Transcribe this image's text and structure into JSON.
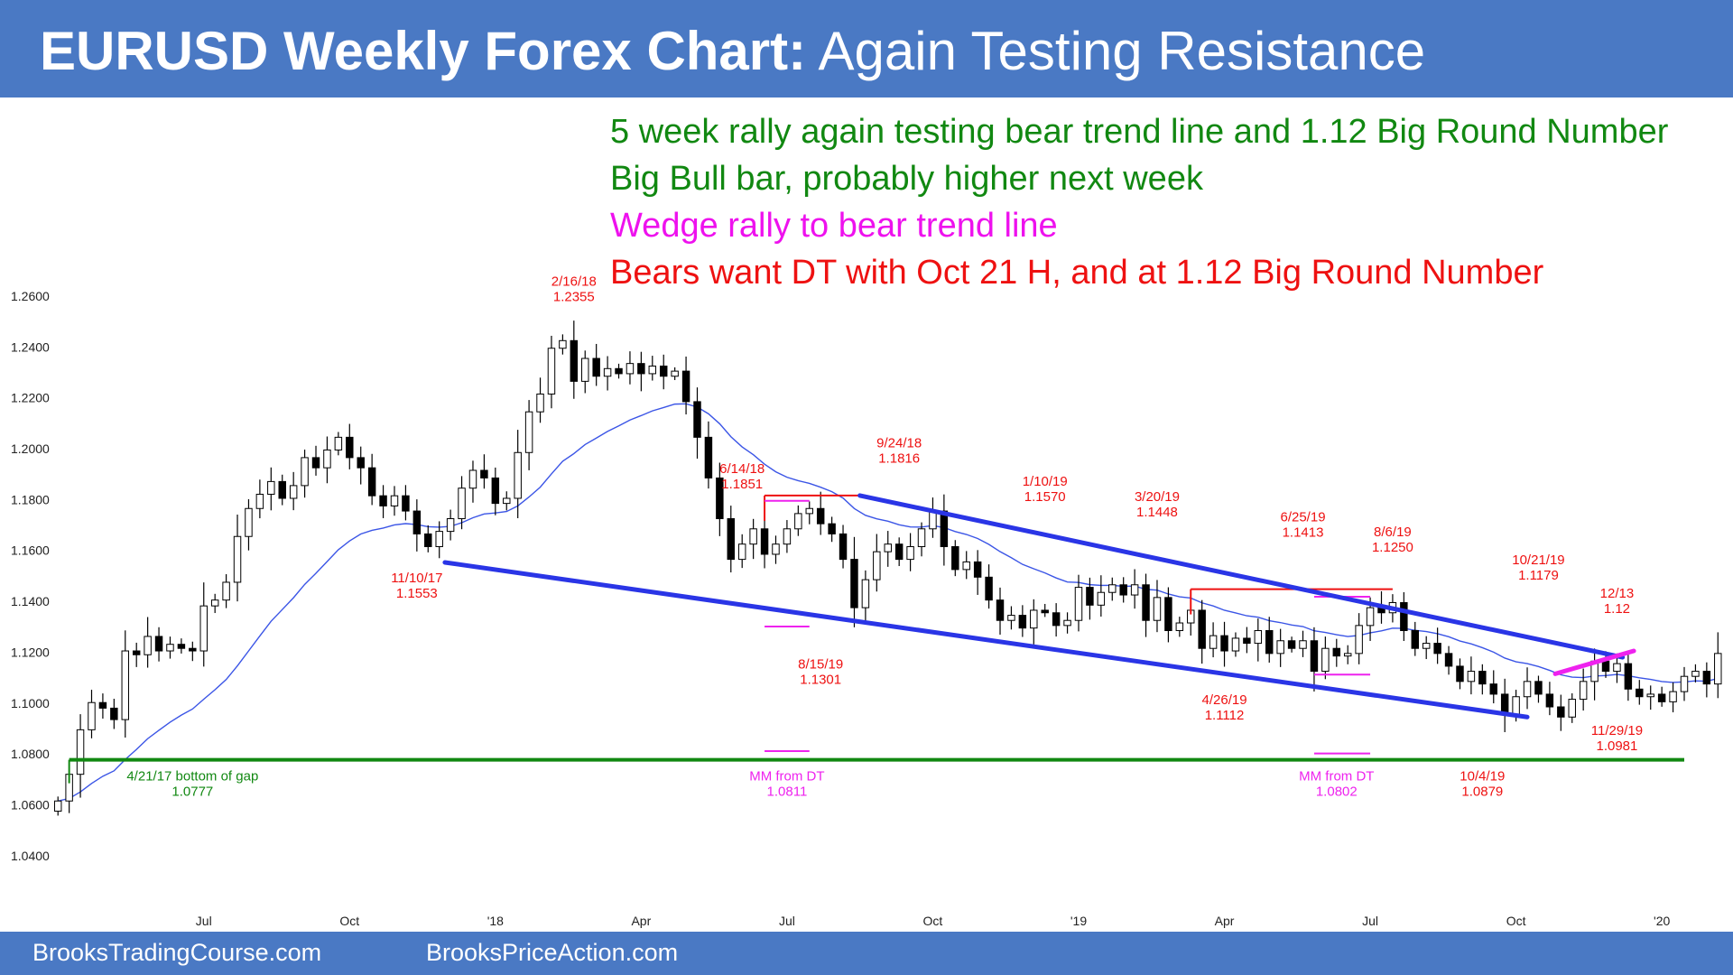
{
  "header": {
    "title_bold": "EURUSD Weekly Forex Chart:",
    "title_rest": " Again Testing Resistance"
  },
  "notes": [
    {
      "text": "5 week rally again testing bear trend line and 1.12 Big Round Number",
      "color": "#118811"
    },
    {
      "text": "Big Bull bar, probably higher next week",
      "color": "#118811"
    },
    {
      "text": "Wedge rally to bear trend line",
      "color": "#ee11ee"
    },
    {
      "text": "Bears want DT with Oct 21 H, and at 1.12 Big Round Number",
      "color": "#ee1111"
    }
  ],
  "footer": {
    "left": "BrooksTradingCourse.com",
    "right": "BrooksPriceAction.com"
  },
  "chart_data": {
    "type": "candlestick",
    "symbol": "EURUSD",
    "timeframe": "weekly",
    "ylim": [
      1.03,
      1.26
    ],
    "yticks": [
      "1.2600",
      "1.2400",
      "1.2200",
      "1.2000",
      "1.1800",
      "1.1600",
      "1.1400",
      "1.1200",
      "1.1000",
      "1.0800",
      "1.0600",
      "1.0400"
    ],
    "xticks": [
      {
        "label": "Jul",
        "week": 13
      },
      {
        "label": "Oct",
        "week": 26
      },
      {
        "label": "'18",
        "week": 39
      },
      {
        "label": "Apr",
        "week": 52
      },
      {
        "label": "Jul",
        "week": 65
      },
      {
        "label": "Oct",
        "week": 78
      },
      {
        "label": "'19",
        "week": 91
      },
      {
        "label": "Apr",
        "week": 104
      },
      {
        "label": "Jul",
        "week": 117
      },
      {
        "label": "Oct",
        "week": 130
      },
      {
        "label": "'20",
        "week": 143
      }
    ],
    "xrange": [
      -0.5,
      145
    ],
    "closes": [
      1.0615,
      1.072,
      1.0895,
      1.1002,
      1.098,
      1.0935,
      1.1205,
      1.119,
      1.1262,
      1.1205,
      1.1231,
      1.1215,
      1.1205,
      1.1382,
      1.1405,
      1.1475,
      1.1655,
      1.1765,
      1.1821,
      1.1871,
      1.1805,
      1.1855,
      1.1965,
      1.1925,
      1.1995,
      1.2045,
      1.1965,
      1.1925,
      1.1815,
      1.1775,
      1.1815,
      1.1755,
      1.1665,
      1.1615,
      1.1675,
      1.1725,
      1.1845,
      1.1915,
      1.1885,
      1.1785,
      1.1805,
      1.1985,
      1.2145,
      1.2215,
      1.2395,
      1.2425,
      1.2265,
      1.2355,
      1.2285,
      1.2315,
      1.2295,
      1.2335,
      1.2295,
      1.2325,
      1.2285,
      1.2305,
      1.2185,
      1.2045,
      1.1885,
      1.1725,
      1.1565,
      1.1625,
      1.1685,
      1.1585,
      1.1625,
      1.1685,
      1.1745,
      1.1765,
      1.1705,
      1.1665,
      1.1565,
      1.1375,
      1.1485,
      1.1595,
      1.1625,
      1.1565,
      1.1615,
      1.1685,
      1.1755,
      1.1615,
      1.1525,
      1.1555,
      1.1495,
      1.1405,
      1.1325,
      1.1345,
      1.1295,
      1.1365,
      1.1355,
      1.1305,
      1.1325,
      1.1455,
      1.1385,
      1.1435,
      1.1465,
      1.1425,
      1.1465,
      1.1325,
      1.1415,
      1.1285,
      1.1315,
      1.1365,
      1.1215,
      1.1265,
      1.1205,
      1.1255,
      1.1235,
      1.1285,
      1.1195,
      1.1245,
      1.1215,
      1.1245,
      1.1125,
      1.1215,
      1.1185,
      1.1195,
      1.1305,
      1.1375,
      1.1355,
      1.1395,
      1.1285,
      1.1215,
      1.1235,
      1.1195,
      1.1145,
      1.1085,
      1.1125,
      1.1075,
      1.1035,
      1.0955,
      1.1025,
      1.1085,
      1.1035,
      1.0985,
      1.0945,
      1.1015,
      1.1085,
      1.1165,
      1.1125,
      1.1155,
      1.1055,
      1.1025,
      1.1035,
      1.1005,
      1.1045,
      1.1105,
      1.1125,
      1.1075,
      1.1195
    ],
    "trend_lines": [
      {
        "name": "upper-bear-trend-line",
        "color": "#2a35e6",
        "from": [
          71.5,
          1.1816
        ],
        "to": [
          139.5,
          1.118
        ]
      },
      {
        "name": "lower-bear-trend-line",
        "color": "#2a35e6",
        "from": [
          34.5,
          1.1553
        ],
        "to": [
          131,
          1.0945
        ]
      },
      {
        "name": "wedge-line",
        "color": "#ee22ee",
        "from": [
          133.5,
          1.1115
        ],
        "to": [
          140.5,
          1.1205
        ]
      }
    ],
    "moving_average": {
      "name": "20-week-ema",
      "color": "#3b55e6"
    },
    "support_line": {
      "name": "gap-support-line",
      "color": "#118811",
      "price": 1.0777,
      "from_week": 1,
      "to_week": 145
    },
    "level_lines": [
      {
        "name": "double-top-2018-line",
        "color": "#ee1111",
        "price": 1.1816,
        "from_week": 63,
        "to_week": 72
      },
      {
        "name": "double-top-2019-line",
        "color": "#ee1111",
        "price": 1.1448,
        "from_week": 101,
        "to_week": 119
      },
      {
        "name": "mm-dt-2018-top",
        "color": "#ee22ee",
        "price": 1.1795,
        "from_week": 63,
        "to_week": 67
      },
      {
        "name": "mm-dt-2018-neckline",
        "color": "#ee22ee",
        "price": 1.1301,
        "from_week": 63,
        "to_week": 67
      },
      {
        "name": "mm-dt-2018-target",
        "color": "#ee22ee",
        "price": 1.0811,
        "from_week": 63,
        "to_week": 67
      },
      {
        "name": "mm-dt-2019-top",
        "color": "#ee22ee",
        "price": 1.1418,
        "from_week": 112,
        "to_week": 117
      },
      {
        "name": "mm-dt-2019-neckline",
        "color": "#ee22ee",
        "price": 1.1112,
        "from_week": 112,
        "to_week": 117
      },
      {
        "name": "mm-dt-2019-target",
        "color": "#ee22ee",
        "price": 1.0802,
        "from_week": 112,
        "to_week": 117
      }
    ],
    "annotations": [
      {
        "lines": [
          "2/16/18",
          "1.2355"
        ],
        "color": "#ee1111",
        "week": 46,
        "price": 1.264
      },
      {
        "lines": [
          "6/14/18",
          "1.1851"
        ],
        "color": "#ee1111",
        "week": 61,
        "price": 1.1905
      },
      {
        "lines": [
          "9/24/18",
          "1.1816"
        ],
        "color": "#ee1111",
        "week": 75,
        "price": 1.2005
      },
      {
        "lines": [
          "1/10/19",
          "1.1570"
        ],
        "color": "#ee1111",
        "week": 88,
        "price": 1.1855
      },
      {
        "lines": [
          "3/20/19",
          "1.1448"
        ],
        "color": "#ee1111",
        "week": 98,
        "price": 1.1795
      },
      {
        "lines": [
          "6/25/19",
          "1.1413"
        ],
        "color": "#ee1111",
        "week": 111,
        "price": 1.1715
      },
      {
        "lines": [
          "8/6/19",
          "1.1250"
        ],
        "color": "#ee1111",
        "week": 119,
        "price": 1.1655
      },
      {
        "lines": [
          "10/21/19",
          "1.1179"
        ],
        "color": "#ee1111",
        "week": 132,
        "price": 1.1545
      },
      {
        "lines": [
          "12/13",
          "1.12"
        ],
        "color": "#ee1111",
        "week": 139,
        "price": 1.1415
      },
      {
        "lines": [
          "11/10/17",
          "1.1553"
        ],
        "color": "#ee1111",
        "week": 32,
        "price": 1.1475
      },
      {
        "lines": [
          "8/15/19",
          "1.1301"
        ],
        "color": "#ee1111",
        "week": 68,
        "price": 1.1135
      },
      {
        "lines": [
          "4/26/19",
          "1.1112"
        ],
        "color": "#ee1111",
        "week": 104,
        "price": 1.0995
      },
      {
        "lines": [
          "11/29/19",
          "1.0981"
        ],
        "color": "#ee1111",
        "week": 139,
        "price": 1.0875
      },
      {
        "lines": [
          "10/4/19",
          "1.0879"
        ],
        "color": "#ee1111",
        "week": 127,
        "price": 1.0695
      },
      {
        "lines": [
          "MM from DT",
          "1.0811"
        ],
        "color": "#ee22ee",
        "week": 65,
        "price": 1.0695
      },
      {
        "lines": [
          "MM from DT",
          "1.0802"
        ],
        "color": "#ee22ee",
        "week": 114,
        "price": 1.0695
      },
      {
        "lines": [
          "4/21/17 bottom of gap",
          "1.0777"
        ],
        "color": "#118811",
        "week": 12,
        "price": 1.0695
      }
    ]
  }
}
